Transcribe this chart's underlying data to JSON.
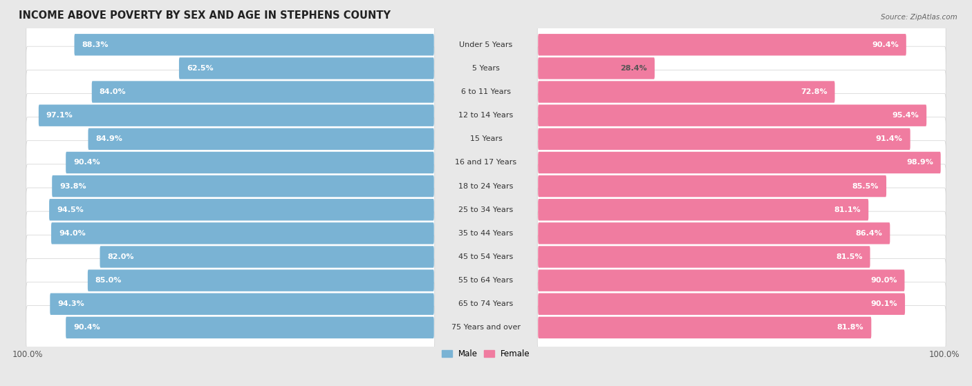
{
  "title": "INCOME ABOVE POVERTY BY SEX AND AGE IN STEPHENS COUNTY",
  "source": "Source: ZipAtlas.com",
  "categories": [
    "Under 5 Years",
    "5 Years",
    "6 to 11 Years",
    "12 to 14 Years",
    "15 Years",
    "16 and 17 Years",
    "18 to 24 Years",
    "25 to 34 Years",
    "35 to 44 Years",
    "45 to 54 Years",
    "55 to 64 Years",
    "65 to 74 Years",
    "75 Years and over"
  ],
  "male_values": [
    88.3,
    62.5,
    84.0,
    97.1,
    84.9,
    90.4,
    93.8,
    94.5,
    94.0,
    82.0,
    85.0,
    94.3,
    90.4
  ],
  "female_values": [
    90.4,
    28.4,
    72.8,
    95.4,
    91.4,
    98.9,
    85.5,
    81.1,
    86.4,
    81.5,
    90.0,
    90.1,
    81.8
  ],
  "male_color": "#7ab3d4",
  "male_color_light": "#c5dff0",
  "female_color": "#f07ca0",
  "female_color_light": "#f9c8d8",
  "male_label": "Male",
  "female_label": "Female",
  "max_value": 100.0,
  "bg_color": "#e8e8e8",
  "row_color_odd": "#f0f0f0",
  "row_color_even": "#fafafa",
  "title_fontsize": 10.5,
  "label_fontsize": 8.0,
  "value_fontsize": 8.0,
  "tick_fontsize": 8.5,
  "source_fontsize": 7.5
}
